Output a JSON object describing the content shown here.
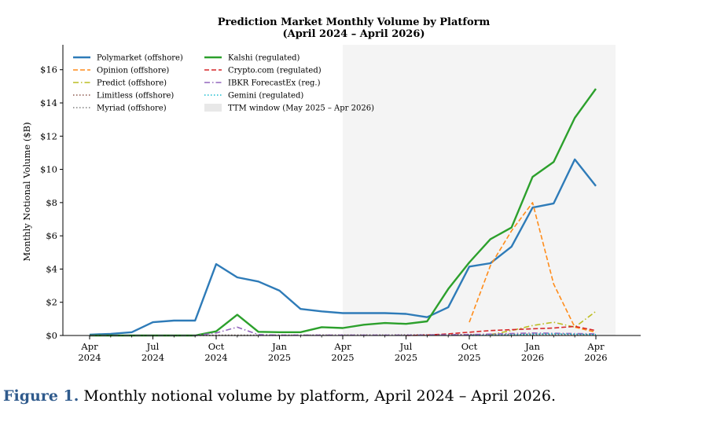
{
  "caption": {
    "label": "Figure 1.",
    "text": "Monthly notional volume by platform, April 2024 – April 2026."
  },
  "chart_data": {
    "type": "line",
    "title": "Prediction Market Monthly Volume by Platform",
    "subtitle": "(April 2024 – April 2026)",
    "ylabel": "Monthly Notional Volume ($B)",
    "xlabel": "",
    "ylim": [
      0,
      17.5
    ],
    "yticks": [
      0,
      2,
      4,
      6,
      8,
      10,
      12,
      14,
      16
    ],
    "ytick_labels": [
      "$0",
      "$2",
      "$4",
      "$6",
      "$8",
      "$10",
      "$12",
      "$14",
      "$16"
    ],
    "xticks": [
      {
        "month": "2024-04",
        "label": "Apr",
        "year": "2024"
      },
      {
        "month": "2024-07",
        "label": "Jul",
        "year": "2024"
      },
      {
        "month": "2024-10",
        "label": "Oct",
        "year": "2024"
      },
      {
        "month": "2025-01",
        "label": "Jan",
        "year": "2025"
      },
      {
        "month": "2025-04",
        "label": "Apr",
        "year": "2025"
      },
      {
        "month": "2025-07",
        "label": "Jul",
        "year": "2025"
      },
      {
        "month": "2025-10",
        "label": "Oct",
        "year": "2025"
      },
      {
        "month": "2026-01",
        "label": "Jan",
        "year": "2026"
      },
      {
        "month": "2026-04",
        "label": "Apr",
        "year": "2026"
      }
    ],
    "months": [
      "2024-04",
      "2024-05",
      "2024-06",
      "2024-07",
      "2024-08",
      "2024-09",
      "2024-10",
      "2024-11",
      "2024-12",
      "2025-01",
      "2025-02",
      "2025-03",
      "2025-04",
      "2025-05",
      "2025-06",
      "2025-07",
      "2025-08",
      "2025-09",
      "2025-10",
      "2025-11",
      "2025-12",
      "2026-01",
      "2026-02",
      "2026-03",
      "2026-04"
    ],
    "shaded_region": {
      "label": "TTM window (May 2025 – Apr 2026)",
      "start": "2025-04",
      "end": "2026-04",
      "color": "#f4f4f4"
    },
    "legend_position": "upper-left",
    "grid": false,
    "series": [
      {
        "name": "Polymarket (offshore)",
        "color": "#2e7bb8",
        "style": "solid",
        "x": [
          "2024-04",
          "2024-05",
          "2024-06",
          "2024-07",
          "2024-08",
          "2024-09",
          "2024-10",
          "2024-11",
          "2024-12",
          "2025-01",
          "2025-02",
          "2025-03",
          "2025-04",
          "2025-05",
          "2025-06",
          "2025-07",
          "2025-08",
          "2025-09",
          "2025-10",
          "2025-11",
          "2025-12",
          "2026-01",
          "2026-02",
          "2026-03",
          "2026-04"
        ],
        "y": [
          0.05,
          0.1,
          0.2,
          0.8,
          0.9,
          0.9,
          4.3,
          3.5,
          3.25,
          2.7,
          1.6,
          1.45,
          1.35,
          1.35,
          1.35,
          1.3,
          1.1,
          1.7,
          4.15,
          4.35,
          5.35,
          7.7,
          7.95,
          10.6,
          9.0
        ]
      },
      {
        "name": "Opinion (offshore)",
        "color": "#ff8c1a",
        "style": "dashed",
        "x": [
          "2025-10",
          "2025-11",
          "2025-12",
          "2026-01",
          "2026-02",
          "2026-03",
          "2026-04"
        ],
        "y": [
          0.8,
          4.2,
          6.3,
          8.0,
          3.1,
          0.5,
          0.2
        ]
      },
      {
        "name": "Predict (offshore)",
        "color": "#bcbd22",
        "style": "dashdot",
        "x": [
          "2025-11",
          "2025-12",
          "2026-01",
          "2026-02",
          "2026-03",
          "2026-04"
        ],
        "y": [
          0.05,
          0.3,
          0.6,
          0.8,
          0.5,
          1.45
        ]
      },
      {
        "name": "Limitless (offshore)",
        "color": "#8c564b",
        "style": "dotted",
        "x": [
          "2024-04",
          "2024-07",
          "2024-10",
          "2025-01",
          "2025-04",
          "2025-07",
          "2025-10",
          "2026-01",
          "2026-04"
        ],
        "y": [
          0,
          0,
          0.02,
          0.02,
          0.03,
          0.04,
          0.06,
          0.08,
          0.06
        ]
      },
      {
        "name": "Myriad (offshore)",
        "color": "#7f7f7f",
        "style": "dotted",
        "x": [
          "2024-04",
          "2024-07",
          "2024-10",
          "2025-01",
          "2025-04",
          "2025-07",
          "2025-10",
          "2026-01",
          "2026-04"
        ],
        "y": [
          0,
          0,
          0,
          0.01,
          0.02,
          0.03,
          0.04,
          0.05,
          0.05
        ]
      },
      {
        "name": "Kalshi (regulated)",
        "color": "#2ca02c",
        "style": "solid",
        "x": [
          "2024-04",
          "2024-05",
          "2024-06",
          "2024-07",
          "2024-08",
          "2024-09",
          "2024-10",
          "2024-11",
          "2024-12",
          "2025-01",
          "2025-02",
          "2025-03",
          "2025-04",
          "2025-05",
          "2025-06",
          "2025-07",
          "2025-08",
          "2025-09",
          "2025-10",
          "2025-11",
          "2025-12",
          "2026-01",
          "2026-02",
          "2026-03",
          "2026-04"
        ],
        "y": [
          0,
          0,
          0,
          0,
          0,
          0,
          0.25,
          1.25,
          0.22,
          0.2,
          0.2,
          0.5,
          0.45,
          0.65,
          0.75,
          0.7,
          0.85,
          2.8,
          4.4,
          5.8,
          6.5,
          9.55,
          10.45,
          13.1,
          14.85
        ]
      },
      {
        "name": "Crypto.com (regulated)",
        "color": "#d62728",
        "style": "dashed",
        "x": [
          "2025-07",
          "2025-08",
          "2025-09",
          "2025-10",
          "2025-11",
          "2025-12",
          "2026-01",
          "2026-02",
          "2026-03",
          "2026-04"
        ],
        "y": [
          0,
          0.03,
          0.1,
          0.2,
          0.3,
          0.35,
          0.4,
          0.45,
          0.55,
          0.3
        ]
      },
      {
        "name": "IBKR ForecastEx (reg.)",
        "color": "#9467bd",
        "style": "dashdot",
        "x": [
          "2024-04",
          "2024-07",
          "2024-09",
          "2024-10",
          "2024-11",
          "2024-12",
          "2025-01",
          "2025-04",
          "2025-07",
          "2025-10",
          "2026-01",
          "2026-04"
        ],
        "y": [
          0,
          0,
          0,
          0.15,
          0.5,
          0.05,
          0.02,
          0.02,
          0.02,
          0.05,
          0.15,
          0.1
        ]
      },
      {
        "name": "Gemini (regulated)",
        "color": "#17becf",
        "style": "dotted",
        "x": [
          "2025-10",
          "2025-11",
          "2025-12",
          "2026-01",
          "2026-02",
          "2026-03",
          "2026-04"
        ],
        "y": [
          0,
          0.02,
          0.04,
          0.08,
          0.1,
          0.08,
          0.06
        ]
      }
    ]
  }
}
